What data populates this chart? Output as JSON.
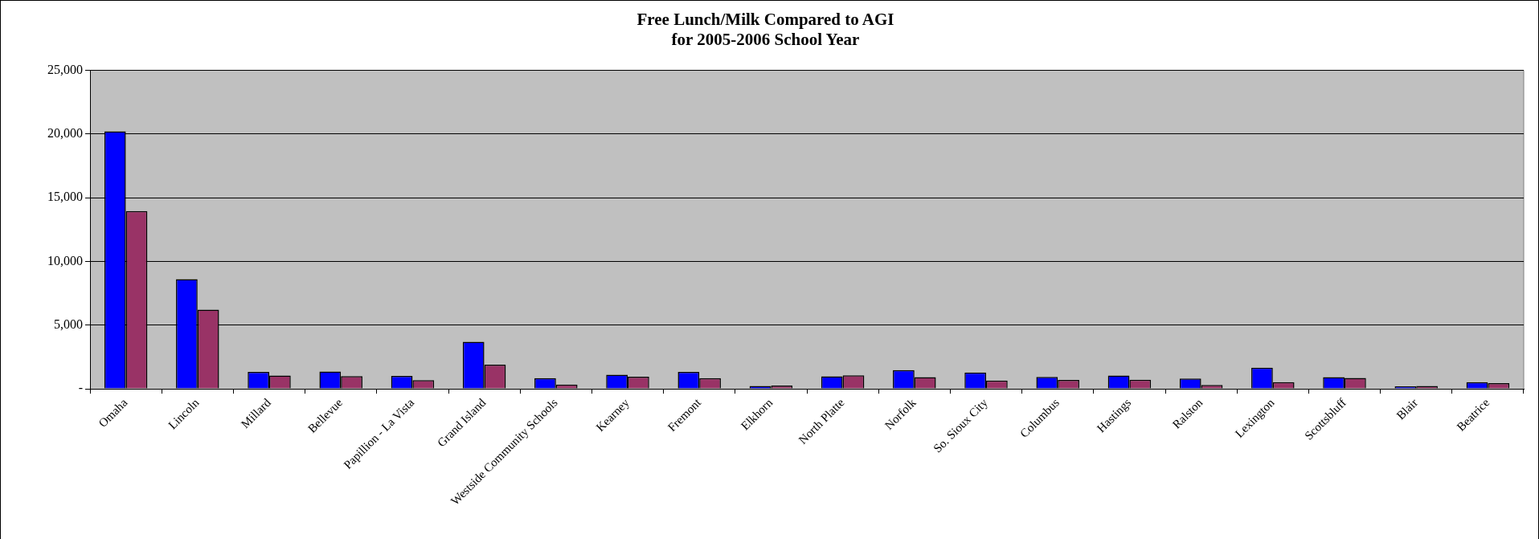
{
  "chart_data": {
    "type": "bar",
    "title": "Free Lunch/Milk Compared to AGI\nfor 2005-2006 School Year",
    "categories": [
      "Omaha",
      "Lincoln",
      "Millard",
      "Bellevue",
      "Papillion - La Vista",
      "Grand Island",
      "Westside Community Schools",
      "Kearney",
      "Fremont",
      "Elkhorn",
      "North Platte",
      "Norfolk",
      "So. Sioux City",
      "Columbus",
      "Hastings",
      "Ralston",
      "Lexington",
      "Scottsbluff",
      "Blair",
      "Beatrice"
    ],
    "series": [
      {
        "color": "#0000ff",
        "values": [
          20200,
          8610,
          1330,
          1360,
          1010,
          3680,
          830,
          1110,
          1330,
          220,
          970,
          1460,
          1270,
          930,
          1040,
          800,
          1650,
          910,
          190,
          520
        ]
      },
      {
        "color": "#993366",
        "values": [
          13940,
          6210,
          1040,
          990,
          670,
          1890,
          330,
          940,
          830,
          250,
          1050,
          910,
          640,
          690,
          710,
          300,
          520,
          850,
          220,
          440
        ]
      }
    ],
    "ylim": [
      0,
      25000
    ],
    "yticks": [
      {
        "value": 0,
        "label": "-"
      },
      {
        "value": 5000,
        "label": "5,000"
      },
      {
        "value": 10000,
        "label": "10,000"
      },
      {
        "value": 15000,
        "label": "15,000"
      },
      {
        "value": 20000,
        "label": "20,000"
      },
      {
        "value": 25000,
        "label": "25,000"
      }
    ],
    "grid": "y",
    "legend": false
  }
}
